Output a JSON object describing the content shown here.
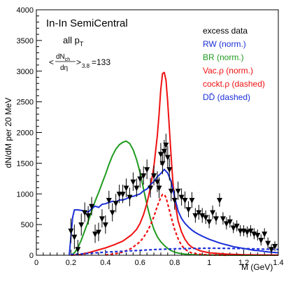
{
  "chart_data": {
    "type": "line",
    "xlabel": "M (GeV)",
    "ylabel": "dN/dM per 20 MeV",
    "xlim": [
      0,
      1.4
    ],
    "ylim": [
      0,
      4000
    ],
    "x_ticks": [
      "0",
      "0.2",
      "0.4",
      "0.6",
      "0.8",
      "1",
      "1.2",
      "1.4"
    ],
    "y_ticks": [
      "0",
      "500",
      "1000",
      "1500",
      "2000",
      "2500",
      "3000",
      "3500",
      "4000"
    ],
    "annotations": {
      "title": "In-In SemiCentral",
      "pt_main": "all p",
      "pt_sub": "T",
      "mult_left": "<",
      "mult_num": "dN",
      "mult_num_sub": "ch",
      "mult_den": "dη",
      "mult_right": ">",
      "mult_sub": "3.8",
      "mult_value": "=133"
    },
    "legend": [
      {
        "label": "excess data",
        "color": "#000000"
      },
      {
        "label": "RW (norm.)",
        "color": "#1a2fd8"
      },
      {
        "label": "BR (norm.)",
        "color": "#1f9a1f"
      },
      {
        "label": "Vac.ρ (norm.)",
        "color": "#f01010"
      },
      {
        "label": "cockt.ρ (dashed)",
        "color": "#f01010"
      },
      {
        "label": "DD̄ (dashed)",
        "color": "#1a2fd8"
      }
    ],
    "series": [
      {
        "name": "RW (norm.)",
        "style": "solid",
        "color": "#1a2fd8",
        "x": [
          0.19,
          0.2,
          0.21,
          0.22,
          0.24,
          0.26,
          0.28,
          0.3,
          0.32,
          0.34,
          0.36,
          0.38,
          0.4,
          0.42,
          0.44,
          0.46,
          0.48,
          0.5,
          0.52,
          0.54,
          0.56,
          0.58,
          0.6,
          0.62,
          0.64,
          0.66,
          0.68,
          0.7,
          0.72,
          0.74,
          0.76,
          0.78,
          0.8,
          0.82,
          0.84,
          0.86,
          0.88,
          0.9,
          0.92,
          0.94,
          0.96,
          0.98,
          1.0,
          1.02,
          1.04,
          1.06,
          1.08,
          1.1,
          1.12,
          1.14,
          1.16,
          1.18,
          1.2,
          1.22,
          1.24,
          1.26,
          1.28,
          1.3,
          1.32,
          1.34,
          1.36,
          1.38,
          1.4
        ],
        "y": [
          0,
          300,
          620,
          740,
          740,
          730,
          720,
          700,
          760,
          800,
          780,
          830,
          840,
          860,
          880,
          870,
          900,
          900,
          920,
          950,
          960,
          980,
          1000,
          1050,
          1080,
          1150,
          1200,
          1280,
          1330,
          1400,
          1340,
          1200,
          950,
          720,
          600,
          520,
          460,
          410,
          370,
          340,
          310,
          285,
          260,
          240,
          220,
          200,
          185,
          170,
          155,
          140,
          130,
          120,
          110,
          100,
          90,
          80,
          75,
          70,
          62,
          55,
          50,
          45,
          40
        ]
      },
      {
        "name": "BR (norm.)",
        "style": "solid",
        "color": "#1f9a1f",
        "x": [
          0.2,
          0.22,
          0.24,
          0.26,
          0.28,
          0.3,
          0.32,
          0.34,
          0.36,
          0.38,
          0.4,
          0.42,
          0.44,
          0.46,
          0.48,
          0.5,
          0.52,
          0.54,
          0.56,
          0.58,
          0.6,
          0.62,
          0.64,
          0.66,
          0.68,
          0.7,
          0.72,
          0.74,
          0.76,
          0.78,
          0.8,
          0.82,
          0.84,
          0.86,
          0.88,
          0.9,
          0.95,
          1.0,
          1.05,
          1.1,
          1.2,
          1.3,
          1.4
        ],
        "y": [
          0,
          40,
          120,
          250,
          400,
          550,
          720,
          880,
          1020,
          1170,
          1320,
          1480,
          1620,
          1730,
          1800,
          1840,
          1860,
          1820,
          1720,
          1560,
          1350,
          1080,
          820,
          600,
          420,
          300,
          220,
          160,
          110,
          75,
          50,
          35,
          25,
          18,
          12,
          8,
          5,
          3,
          2,
          1,
          0,
          0,
          0
        ]
      },
      {
        "name": "Vac.ρ (norm.)",
        "style": "solid",
        "color": "#f01010",
        "x": [
          0.2,
          0.25,
          0.3,
          0.35,
          0.4,
          0.45,
          0.5,
          0.55,
          0.58,
          0.6,
          0.62,
          0.64,
          0.66,
          0.68,
          0.7,
          0.71,
          0.72,
          0.73,
          0.74,
          0.75,
          0.76,
          0.77,
          0.78,
          0.79,
          0.8,
          0.82,
          0.84,
          0.86,
          0.88,
          0.9,
          0.95,
          1.0,
          1.1,
          1.2,
          1.3,
          1.4
        ],
        "y": [
          0,
          10,
          40,
          80,
          120,
          170,
          230,
          330,
          420,
          520,
          660,
          850,
          1100,
          1450,
          1950,
          2300,
          2700,
          2960,
          2980,
          2850,
          2500,
          2050,
          1600,
          1200,
          900,
          560,
          380,
          260,
          180,
          130,
          70,
          40,
          18,
          8,
          4,
          2
        ]
      },
      {
        "name": "cockt.ρ (dashed)",
        "style": "dashed",
        "color": "#f01010",
        "x": [
          0.4,
          0.45,
          0.5,
          0.55,
          0.6,
          0.62,
          0.64,
          0.66,
          0.68,
          0.7,
          0.72,
          0.73,
          0.74,
          0.75,
          0.76,
          0.78,
          0.8,
          0.82,
          0.84,
          0.86,
          0.88,
          0.9,
          0.95,
          1.0,
          1.1
        ],
        "y": [
          5,
          20,
          50,
          110,
          220,
          290,
          380,
          490,
          630,
          800,
          940,
          990,
          990,
          940,
          840,
          620,
          420,
          270,
          160,
          100,
          60,
          35,
          15,
          5,
          0
        ]
      },
      {
        "name": "DD̄ (dashed)",
        "style": "dashed",
        "color": "#1a2fd8",
        "x": [
          0.2,
          0.3,
          0.4,
          0.5,
          0.6,
          0.7,
          0.8,
          0.9,
          1.0,
          1.1,
          1.2,
          1.3,
          1.4
        ],
        "y": [
          10,
          30,
          50,
          65,
          80,
          95,
          105,
          110,
          115,
          112,
          108,
          100,
          95
        ]
      },
      {
        "name": "excess data",
        "style": "points",
        "color": "#000000",
        "x": [
          0.2,
          0.22,
          0.24,
          0.26,
          0.28,
          0.3,
          0.32,
          0.34,
          0.36,
          0.38,
          0.4,
          0.42,
          0.44,
          0.46,
          0.48,
          0.5,
          0.52,
          0.54,
          0.56,
          0.58,
          0.6,
          0.62,
          0.64,
          0.66,
          0.68,
          0.7,
          0.71,
          0.72,
          0.73,
          0.74,
          0.75,
          0.76,
          0.77,
          0.78,
          0.8,
          0.82,
          0.84,
          0.86,
          0.88,
          0.9,
          0.92,
          0.94,
          0.96,
          0.98,
          1.0,
          1.02,
          1.04,
          1.06,
          1.08,
          1.1,
          1.12,
          1.14,
          1.16,
          1.18,
          1.2,
          1.22,
          1.24,
          1.26,
          1.28,
          1.3,
          1.32,
          1.34,
          1.36,
          1.38
        ],
        "y": [
          400,
          300,
          100,
          500,
          700,
          650,
          800,
          350,
          380,
          600,
          500,
          900,
          700,
          850,
          1000,
          1000,
          1100,
          950,
          1200,
          1100,
          1250,
          1300,
          1400,
          1100,
          1300,
          1200,
          1100,
          1650,
          1500,
          1700,
          1800,
          1600,
          1400,
          1050,
          900,
          1050,
          950,
          900,
          750,
          900,
          650,
          700,
          650,
          620,
          550,
          700,
          600,
          900,
          600,
          520,
          550,
          450,
          480,
          400,
          400,
          380,
          400,
          350,
          330,
          250,
          350,
          200,
          100,
          150
        ],
        "err": [
          200,
          200,
          150,
          180,
          160,
          150,
          150,
          150,
          150,
          150,
          150,
          150,
          150,
          150,
          150,
          150,
          150,
          150,
          150,
          150,
          150,
          150,
          160,
          160,
          160,
          170,
          170,
          180,
          180,
          180,
          180,
          180,
          180,
          170,
          160,
          150,
          140,
          140,
          130,
          130,
          120,
          120,
          120,
          110,
          110,
          110,
          100,
          110,
          100,
          100,
          100,
          90,
          90,
          90,
          90,
          90,
          90,
          90,
          90,
          90,
          90,
          90,
          80,
          80
        ]
      }
    ]
  }
}
